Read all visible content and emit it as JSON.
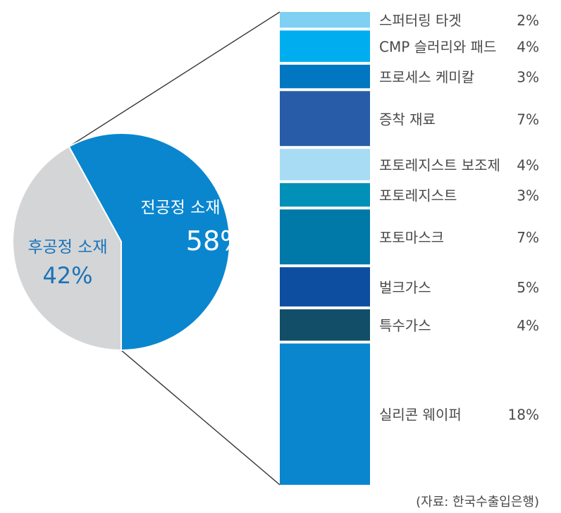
{
  "chart_data": {
    "type": "bar-of-pie",
    "pie": {
      "slices": [
        {
          "name": "전공정 소재",
          "value": 58,
          "label": "58%",
          "color": "#0a86cf"
        },
        {
          "name": "후공정 소재",
          "value": 42,
          "label": "42%",
          "color": "#d4d5d7"
        }
      ]
    },
    "breakdown": {
      "of": "전공정 소재",
      "items": [
        {
          "name": "스퍼터링 타겟",
          "value": 2,
          "label": "2%",
          "color": "#7fd0f2"
        },
        {
          "name": "CMP 슬러리와 패드",
          "value": 4,
          "label": "4%",
          "color": "#00aeef"
        },
        {
          "name": "프로세스 케미칼",
          "value": 3,
          "label": "3%",
          "color": "#0077c0"
        },
        {
          "name": "증착 재료",
          "value": 7,
          "label": "7%",
          "color": "#285ca8"
        },
        {
          "name": "포토레지스트 보조제",
          "value": 4,
          "label": "4%",
          "color": "#a8dcf4"
        },
        {
          "name": "포토레지스트",
          "value": 3,
          "label": "3%",
          "color": "#0090b8"
        },
        {
          "name": "포토마스크",
          "value": 7,
          "label": "7%",
          "color": "#0078a8"
        },
        {
          "name": "벌크가스",
          "value": 5,
          "label": "5%",
          "color": "#0d4ea0"
        },
        {
          "name": "특수가스",
          "value": 4,
          "label": "4%",
          "color": "#124e68"
        },
        {
          "name": "실리콘 웨이퍼",
          "value": 18,
          "label": "18%",
          "color": "#0a86cf"
        }
      ]
    }
  },
  "source": "(자료: 한국수출입은행)"
}
